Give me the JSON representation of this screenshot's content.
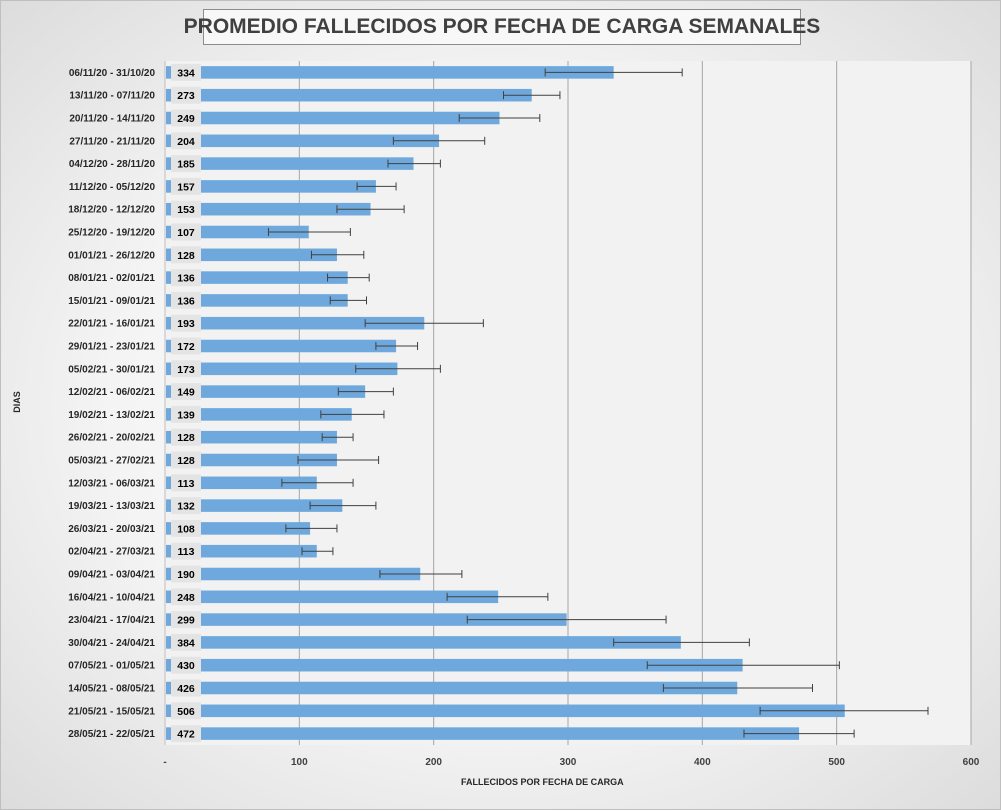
{
  "chart_data": {
    "type": "bar",
    "orientation": "horizontal",
    "title": "PROMEDIO FALLECIDOS POR FECHA DE CARGA SEMANALES",
    "xlabel": "FALLECIDOS POR FECHA DE CARGA",
    "ylabel": "DIAS",
    "xlim": [
      0,
      600
    ],
    "xticks": [
      0,
      100,
      200,
      300,
      400,
      500,
      600
    ],
    "xtick_labels": [
      "-",
      "100",
      "200",
      "300",
      "400",
      "500",
      "600"
    ],
    "grid": "vertical",
    "bar_color": "#6fa8dc",
    "categories": [
      "06/11/20 - 31/10/20",
      "13/11/20 - 07/11/20",
      "20/11/20 - 14/11/20",
      "27/11/20 - 21/11/20",
      "04/12/20 - 28/11/20",
      "11/12/20 - 05/12/20",
      "18/12/20 - 12/12/20",
      "25/12/20 - 19/12/20",
      "01/01/21 - 26/12/20",
      "08/01/21 - 02/01/21",
      "15/01/21 - 09/01/21",
      "22/01/21 - 16/01/21",
      "29/01/21 - 23/01/21",
      "05/02/21 - 30/01/21",
      "12/02/21 - 06/02/21",
      "19/02/21 - 13/02/21",
      "26/02/21 - 20/02/21",
      "05/03/21 - 27/02/21",
      "12/03/21 - 06/03/21",
      "19/03/21 - 13/03/21",
      "26/03/21 - 20/03/21",
      "02/04/21 - 27/03/21",
      "09/04/21 - 03/04/21",
      "16/04/21 - 10/04/21",
      "23/04/21 - 17/04/21",
      "30/04/21 - 24/04/21",
      "07/05/21 - 01/05/21",
      "14/05/21 - 08/05/21",
      "21/05/21 - 15/05/21",
      "28/05/21 - 22/05/21"
    ],
    "values": [
      334,
      273,
      249,
      204,
      185,
      157,
      153,
      107,
      128,
      136,
      136,
      193,
      172,
      173,
      149,
      139,
      128,
      128,
      113,
      132,
      108,
      113,
      190,
      248,
      299,
      384,
      430,
      426,
      506,
      472
    ],
    "error_bars": [
      [
        283,
        385
      ],
      [
        252,
        294
      ],
      [
        219,
        279
      ],
      [
        170,
        238
      ],
      [
        166,
        205
      ],
      [
        143,
        172
      ],
      [
        128,
        178
      ],
      [
        77,
        138
      ],
      [
        109,
        148
      ],
      [
        121,
        152
      ],
      [
        123,
        150
      ],
      [
        149,
        237
      ],
      [
        157,
        188
      ],
      [
        142,
        205
      ],
      [
        129,
        170
      ],
      [
        116,
        163
      ],
      [
        117,
        140
      ],
      [
        99,
        159
      ],
      [
        87,
        140
      ],
      [
        108,
        157
      ],
      [
        90,
        128
      ],
      [
        102,
        125
      ],
      [
        160,
        221
      ],
      [
        210,
        285
      ],
      [
        225,
        373
      ],
      [
        334,
        435
      ],
      [
        359,
        502
      ],
      [
        371,
        482
      ],
      [
        443,
        568
      ],
      [
        431,
        513
      ]
    ]
  }
}
